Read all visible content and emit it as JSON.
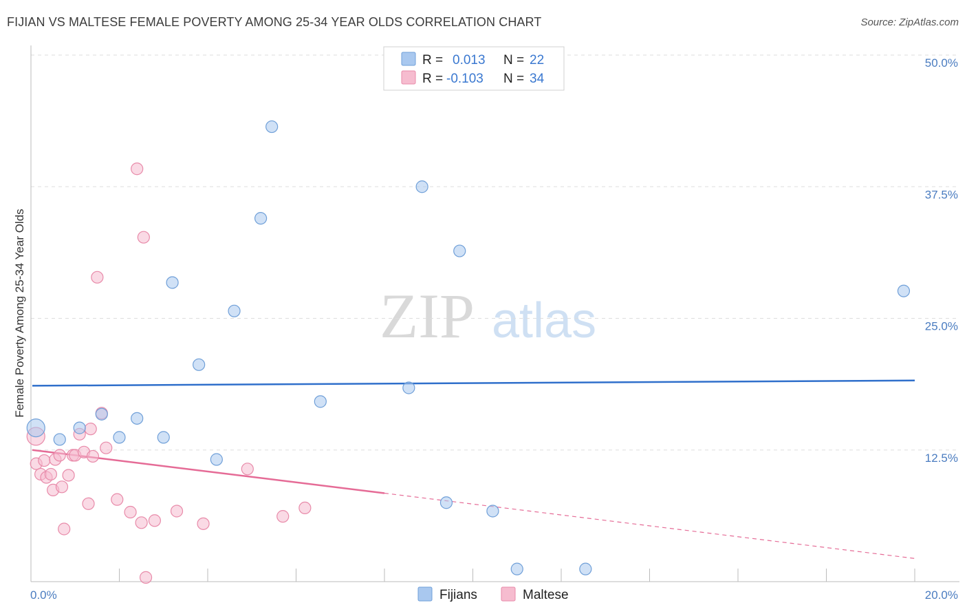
{
  "title": "FIJIAN VS MALTESE FEMALE POVERTY AMONG 25-34 YEAR OLDS CORRELATION CHART",
  "source": "Source: ZipAtlas.com",
  "colors": {
    "fijians_fill": "#a9c8ef",
    "fijians_stroke": "#6f9fd8",
    "fijians_line": "#2f6fcb",
    "maltese_fill": "#f6bccf",
    "maltese_stroke": "#e88aa9",
    "maltese_line": "#e56b96",
    "tick": "#4a7cc0",
    "grid": "#dddddd"
  },
  "watermark": {
    "zip": "ZIP",
    "atlas": "atlas"
  },
  "legend": {
    "fijians": {
      "r_label": "R =",
      "r_value": "0.013",
      "n_label": "N =",
      "n_value": "22"
    },
    "maltese": {
      "r_label": "R =",
      "r_value": "-0.103",
      "n_label": "N =",
      "n_value": "34"
    }
  },
  "chart_data": {
    "type": "scatter",
    "title": "FIJIAN VS MALTESE FEMALE POVERTY AMONG 25-34 YEAR OLDS CORRELATION CHART",
    "xlabel": "",
    "ylabel": "Female Poverty Among 25-34 Year Olds",
    "xlim": [
      0,
      20
    ],
    "ylim": [
      0,
      50
    ],
    "x_tick_labels": [
      "0.0%",
      "20.0%"
    ],
    "y_ticks": [
      12.5,
      25.0,
      37.5,
      50.0
    ],
    "y_tick_labels": [
      "12.5%",
      "25.0%",
      "37.5%",
      "50.0%"
    ],
    "series": [
      {
        "name": "Fijians",
        "points": [
          [
            0.05,
            14.6
          ],
          [
            0.65,
            13.5
          ],
          [
            1.1,
            14.6
          ],
          [
            1.6,
            15.9
          ],
          [
            2.0,
            13.7
          ],
          [
            2.4,
            15.5
          ],
          [
            3.0,
            13.7
          ],
          [
            3.2,
            28.4
          ],
          [
            3.8,
            20.6
          ],
          [
            4.2,
            11.6
          ],
          [
            4.6,
            25.7
          ],
          [
            5.2,
            34.5
          ],
          [
            5.45,
            43.2
          ],
          [
            6.55,
            17.1
          ],
          [
            8.55,
            18.4
          ],
          [
            8.85,
            37.5
          ],
          [
            9.4,
            7.5
          ],
          [
            9.7,
            31.4
          ],
          [
            10.45,
            6.7
          ],
          [
            11.0,
            1.2
          ],
          [
            12.55,
            1.2
          ],
          [
            19.75,
            27.6
          ]
        ],
        "trend": {
          "x": [
            0,
            20
          ],
          "y": [
            18.6,
            19.1
          ]
        }
      },
      {
        "name": "Maltese",
        "points": [
          [
            0.05,
            13.8
          ],
          [
            0.12,
            11.2
          ],
          [
            0.22,
            10.2
          ],
          [
            0.3,
            11.5
          ],
          [
            0.35,
            9.9
          ],
          [
            0.45,
            10.2
          ],
          [
            0.5,
            8.7
          ],
          [
            0.55,
            11.6
          ],
          [
            0.65,
            12.0
          ],
          [
            0.7,
            9.0
          ],
          [
            0.75,
            5.0
          ],
          [
            0.85,
            10.1
          ],
          [
            0.95,
            12.0
          ],
          [
            1.0,
            12.0
          ],
          [
            1.1,
            14.0
          ],
          [
            1.2,
            12.3
          ],
          [
            1.3,
            7.4
          ],
          [
            1.35,
            14.5
          ],
          [
            1.4,
            11.9
          ],
          [
            1.5,
            28.9
          ],
          [
            1.6,
            16.0
          ],
          [
            1.7,
            12.7
          ],
          [
            1.95,
            7.8
          ],
          [
            2.25,
            6.6
          ],
          [
            2.4,
            39.2
          ],
          [
            2.5,
            5.6
          ],
          [
            2.55,
            32.7
          ],
          [
            2.6,
            0.4
          ],
          [
            2.8,
            5.8
          ],
          [
            3.3,
            6.7
          ],
          [
            3.9,
            5.5
          ],
          [
            4.9,
            10.7
          ],
          [
            5.7,
            6.2
          ],
          [
            6.2,
            7.0
          ]
        ],
        "trend": {
          "x": [
            0,
            8
          ],
          "y": [
            12.5,
            8.4
          ]
        },
        "trend_extended": {
          "x": [
            8,
            20
          ],
          "y": [
            8.4,
            2.2
          ]
        }
      }
    ],
    "legend_position": "top-center",
    "bottom_legend": [
      "Fijians",
      "Maltese"
    ],
    "grid": true
  }
}
